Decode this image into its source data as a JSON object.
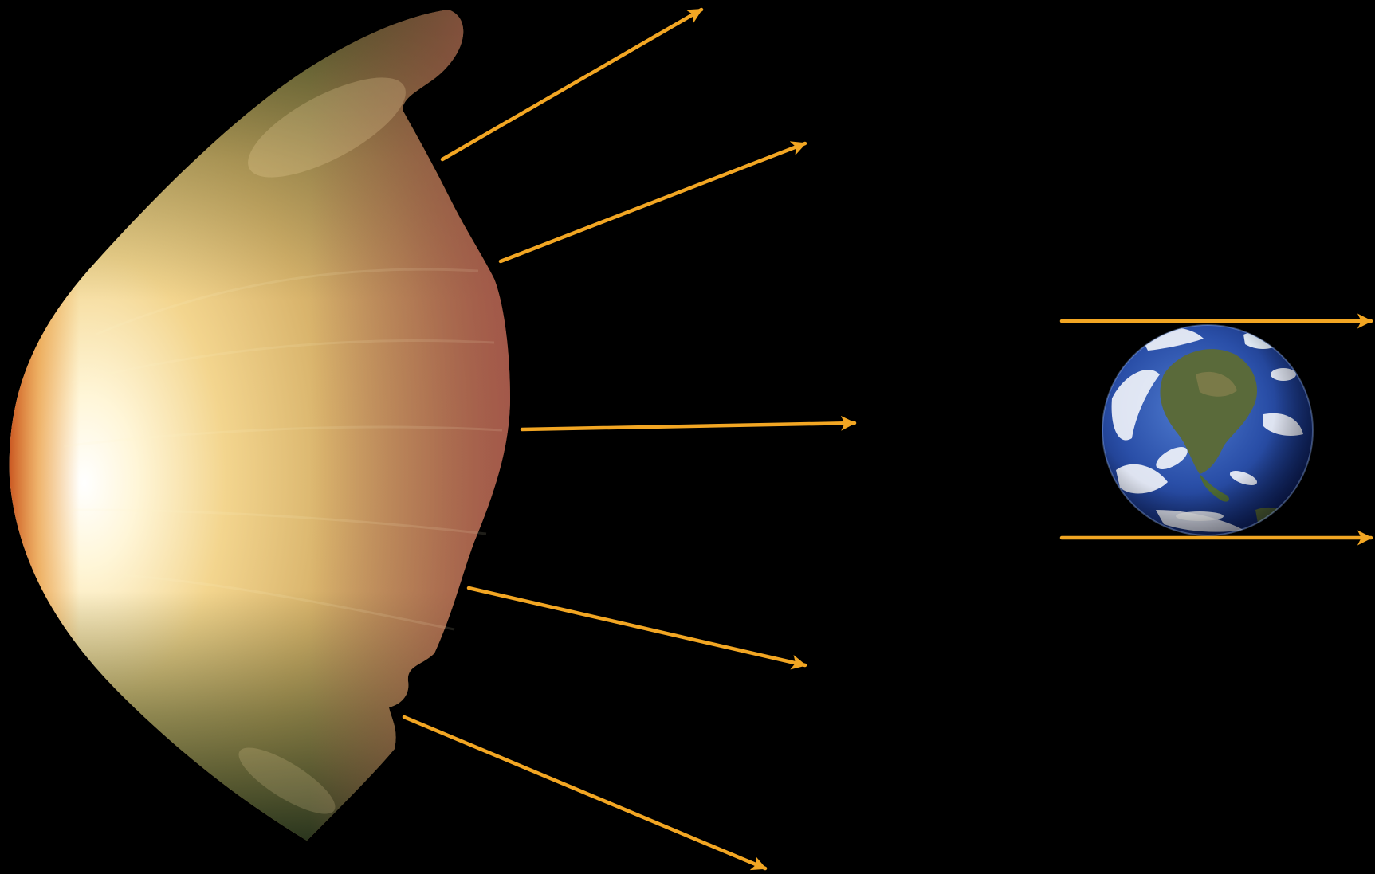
{
  "diagram": {
    "background_color": "#000000",
    "arrow_color": "#F2A623",
    "sun": {
      "icon": "sun-surface-icon",
      "colors": {
        "core": "#FFFFFF",
        "bright": "#FFE8A8",
        "mid": "#E6C070",
        "edge_orange": "#E07A1E",
        "edge_red": "#A8504A",
        "shadow_green": "#3E4A22"
      }
    },
    "earth": {
      "icon": "earth-globe-icon",
      "colors": {
        "ocean": "#1E3F8F",
        "ocean_light": "#4F7BD0",
        "land": "#5A6A3A",
        "cloud": "#FFFFFF"
      }
    },
    "solar_rays": [
      {
        "name": "ray-1",
        "direction": "upper-right"
      },
      {
        "name": "ray-2",
        "direction": "upper-right"
      },
      {
        "name": "ray-3",
        "direction": "right"
      },
      {
        "name": "ray-4",
        "direction": "lower-right"
      },
      {
        "name": "ray-5",
        "direction": "lower-right"
      }
    ],
    "parallel_rays": [
      {
        "name": "parallel-ray-top",
        "direction": "right"
      },
      {
        "name": "parallel-ray-bottom",
        "direction": "right"
      }
    ]
  }
}
